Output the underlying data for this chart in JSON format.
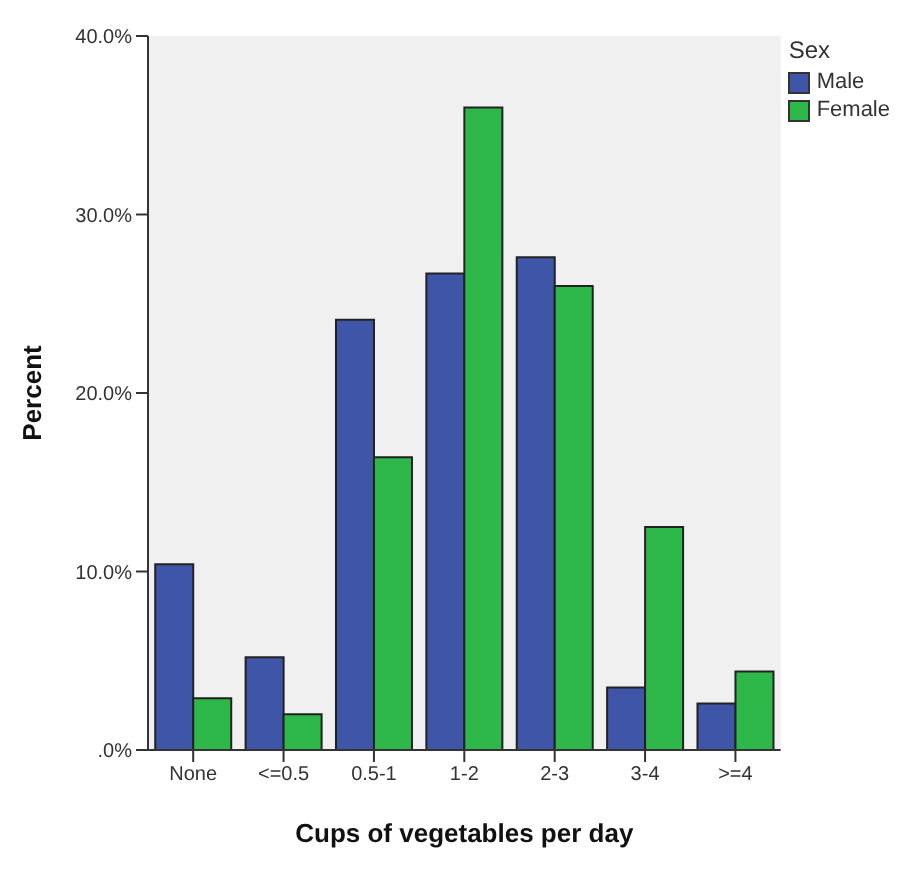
{
  "chart_data": {
    "type": "bar",
    "xlabel": "Cups of vegetables per day",
    "ylabel": "Percent",
    "legend_title": "Sex",
    "categories": [
      "None",
      "<=0.5",
      "0.5-1",
      "1-2",
      "2-3",
      "3-4",
      ">=4"
    ],
    "series": [
      {
        "name": "Male",
        "color": "#3f55a8",
        "values": [
          10.4,
          5.2,
          24.1,
          26.7,
          27.6,
          3.5,
          2.6
        ]
      },
      {
        "name": "Female",
        "color": "#2fb84a",
        "values": [
          2.9,
          2.0,
          16.4,
          36.0,
          26.0,
          12.5,
          4.4
        ]
      }
    ],
    "ylim": [
      0,
      40
    ],
    "yticks": [
      {
        "value": 0,
        "label": ".0%"
      },
      {
        "value": 10,
        "label": "10.0%"
      },
      {
        "value": 20,
        "label": "20.0%"
      },
      {
        "value": 30,
        "label": "30.0%"
      },
      {
        "value": 40,
        "label": "40.0%"
      }
    ],
    "grid": false,
    "legend": "top right"
  }
}
